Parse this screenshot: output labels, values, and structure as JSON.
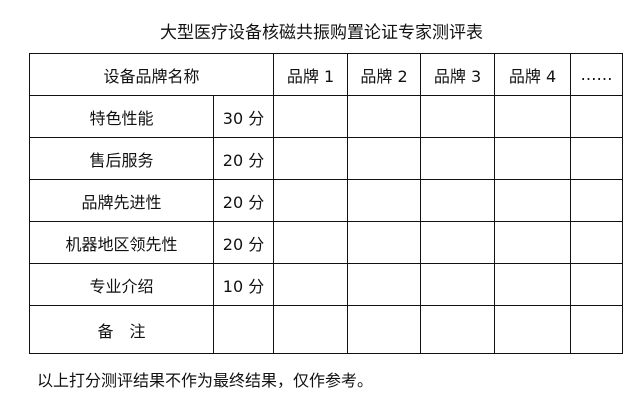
{
  "title": "大型医疗设备核磁共振购置论证专家测评表",
  "header": {
    "name_label": "设备品牌名称",
    "brands": [
      "品牌 1",
      "品牌 2",
      "品牌 3",
      "品牌 4",
      "……"
    ]
  },
  "rows": [
    {
      "criterion": "特色性能",
      "score": "30 分"
    },
    {
      "criterion": "售后服务",
      "score": "20 分"
    },
    {
      "criterion": "品牌先进性",
      "score": "20 分"
    },
    {
      "criterion": "机器地区领先性",
      "score": "20 分"
    },
    {
      "criterion": "专业介绍",
      "score": "10 分"
    }
  ],
  "remarks_label": "备　注",
  "footer": "以上打分测评结果不作为最终结果，仅作参考。"
}
